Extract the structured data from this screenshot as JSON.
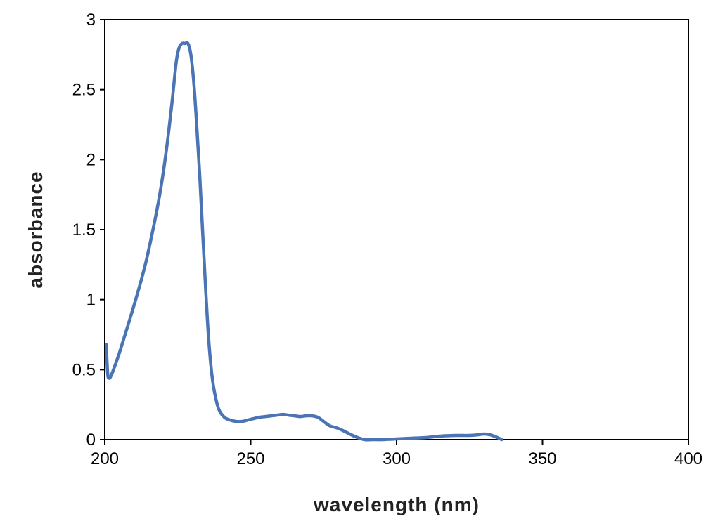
{
  "chart_data": {
    "type": "line",
    "title": "",
    "xlabel": "wavelength (nm)",
    "ylabel": "absorbance",
    "xlim": [
      200,
      400
    ],
    "ylim": [
      0,
      3
    ],
    "x_ticks": [
      "200",
      "250",
      "300",
      "350",
      "400"
    ],
    "y_ticks": [
      "0",
      "0.5",
      "1",
      "1.5",
      "2",
      "2.5",
      "3"
    ],
    "grid": false,
    "legend": "none",
    "series": [
      {
        "color": "#4a74b4",
        "x": [
          200.5,
          201,
          201.5,
          202,
          203,
          205,
          208,
          211,
          214,
          217,
          219,
          221,
          223,
          224.5,
          225.5,
          226.5,
          227.5,
          228.5,
          229.5,
          230.5,
          231.5,
          232.5,
          233.5,
          234.5,
          235.5,
          236.5,
          237.5,
          239,
          241,
          243,
          245,
          247,
          249,
          251,
          253,
          255,
          257,
          259,
          261,
          263,
          265,
          267,
          269,
          271,
          273,
          275,
          277,
          280,
          283,
          286,
          289,
          292,
          295,
          300,
          305,
          310,
          315,
          320,
          325,
          328,
          330,
          332,
          334,
          336
        ],
        "y": [
          0.68,
          0.47,
          0.44,
          0.45,
          0.5,
          0.62,
          0.82,
          1.03,
          1.26,
          1.55,
          1.77,
          2.05,
          2.4,
          2.7,
          2.8,
          2.83,
          2.83,
          2.83,
          2.75,
          2.55,
          2.25,
          1.9,
          1.5,
          1.1,
          0.75,
          0.5,
          0.35,
          0.22,
          0.16,
          0.14,
          0.13,
          0.13,
          0.14,
          0.15,
          0.16,
          0.165,
          0.17,
          0.175,
          0.18,
          0.175,
          0.17,
          0.165,
          0.17,
          0.17,
          0.16,
          0.13,
          0.1,
          0.08,
          0.05,
          0.02,
          0.0,
          0.0,
          0.0,
          0.005,
          0.01,
          0.015,
          0.025,
          0.03,
          0.03,
          0.035,
          0.04,
          0.035,
          0.02,
          0.0
        ]
      }
    ]
  }
}
